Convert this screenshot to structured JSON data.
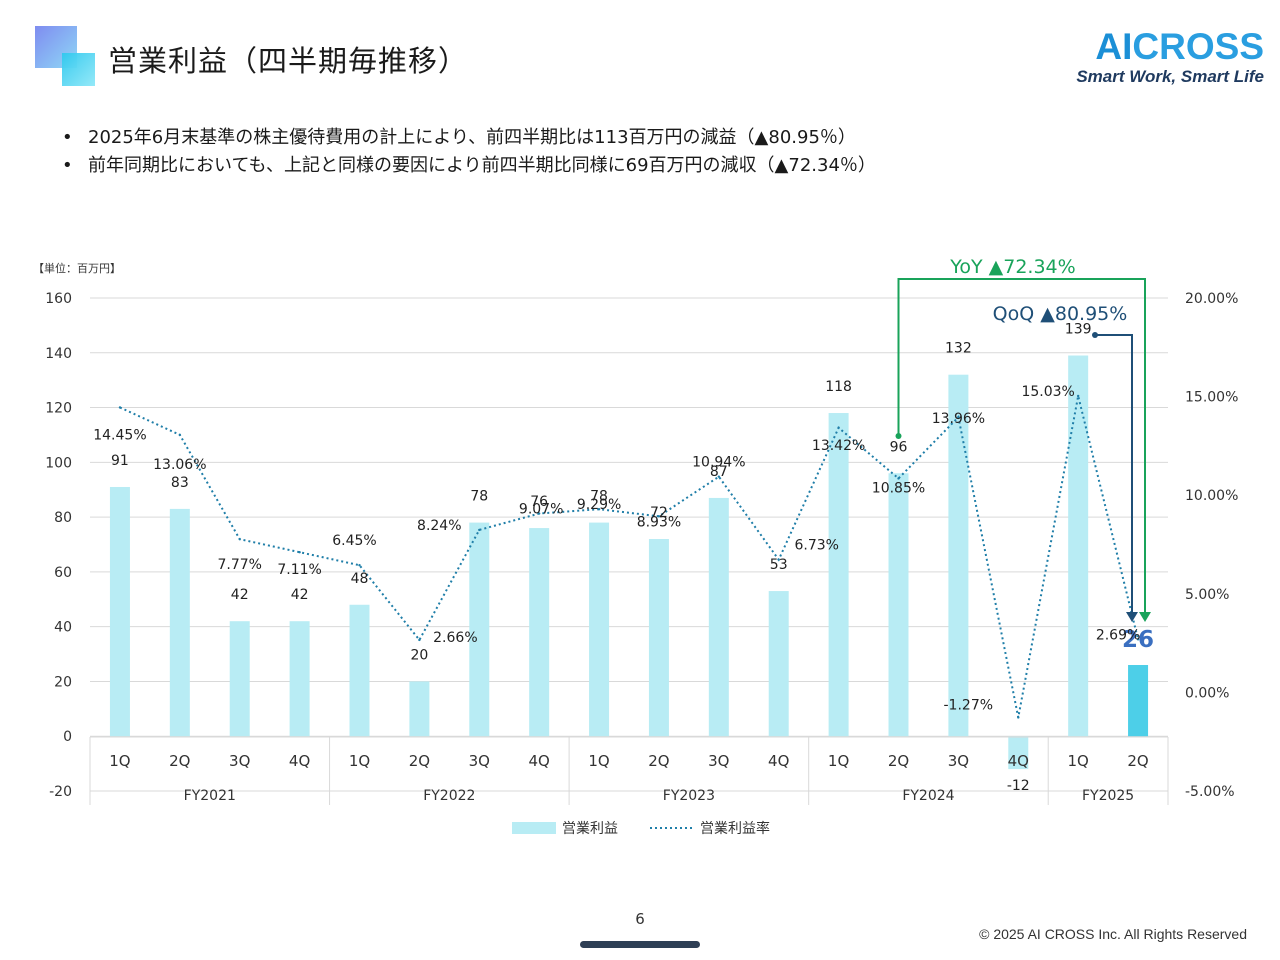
{
  "header": {
    "title": "営業利益（四半期毎推移）",
    "logo_ai": "AI",
    "logo_cross": "CROSS",
    "logo_tagline": "Smart Work, Smart Life"
  },
  "bullets": [
    "2025年6月末基準の株主優待費用の計上により、前四半期比は113百万円の減益（▲80.95％）",
    "前年同期比においても、上記と同様の要因により前四半期比同様に69百万円の減収（▲72.34％）"
  ],
  "footer": {
    "page_number": "6",
    "copyright": "© 2025 AI CROSS Inc. All Rights Reserved"
  },
  "colors": {
    "bar": "#b8ecf4",
    "bar_highlight": "#4dcfe8",
    "line": "#1f7ea8",
    "yoy": "#19a35a",
    "qoq": "#1f4f77",
    "highlight_label": "#3a6fc0"
  },
  "chart_data": {
    "type": "bar",
    "unit_label": "【単位：百万円】",
    "categories": [
      "1Q",
      "2Q",
      "3Q",
      "4Q",
      "1Q",
      "2Q",
      "3Q",
      "4Q",
      "1Q",
      "2Q",
      "3Q",
      "4Q",
      "1Q",
      "2Q",
      "3Q",
      "4Q",
      "1Q",
      "2Q"
    ],
    "groups": [
      {
        "label": "FY2021",
        "count": 4
      },
      {
        "label": "FY2022",
        "count": 4
      },
      {
        "label": "FY2023",
        "count": 4
      },
      {
        "label": "FY2024",
        "count": 4
      },
      {
        "label": "FY2025",
        "count": 2
      }
    ],
    "series": [
      {
        "name": "営業利益",
        "type": "bar",
        "axis": "left",
        "values": [
          91,
          83,
          42,
          42,
          48,
          20,
          78,
          76,
          78,
          72,
          87,
          53,
          118,
          96,
          132,
          -12,
          139,
          26
        ]
      },
      {
        "name": "営業利益率",
        "type": "line",
        "axis": "right",
        "values": [
          14.45,
          13.06,
          7.77,
          7.11,
          6.45,
          2.66,
          8.24,
          9.07,
          9.29,
          8.93,
          10.94,
          6.73,
          13.42,
          10.85,
          13.96,
          -1.27,
          15.03,
          2.69
        ],
        "labels": [
          "14.45%",
          "13.06%",
          "7.77%",
          "7.11%",
          "6.45%",
          "2.66%",
          "8.24%",
          "9.07%",
          "9.29%",
          "8.93%",
          "10.94%",
          "6.73%",
          "13.42%",
          "10.85%",
          "13.96%",
          "-1.27%",
          "15.03%",
          "2.69%"
        ]
      }
    ],
    "highlight_index": 17,
    "y_left": {
      "min": -20,
      "max": 160,
      "step": 20,
      "ticks": [
        "-20",
        "0",
        "20",
        "40",
        "60",
        "80",
        "100",
        "120",
        "140",
        "160"
      ]
    },
    "y_right": {
      "min": -5,
      "max": 20,
      "step": 5,
      "ticks": [
        "-5.00%",
        "0.00%",
        "5.00%",
        "10.00%",
        "15.00%",
        "20.00%"
      ]
    },
    "grid": true,
    "legend": {
      "position": "bottom"
    },
    "annotations": {
      "yoy_label": "YoY ▲72.34%",
      "qoq_label": "QoQ ▲80.95%"
    }
  }
}
